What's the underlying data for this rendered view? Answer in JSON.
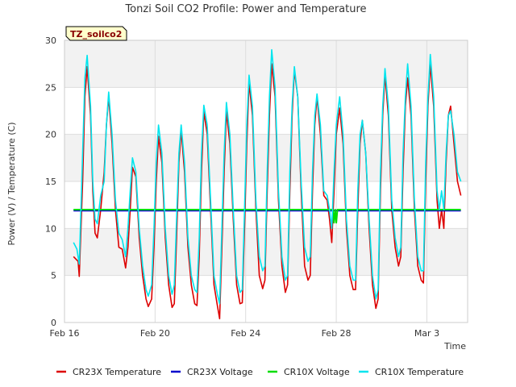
{
  "chart_data": {
    "type": "line",
    "title": "Tonzi Soil CO2 Profile: Power and Temperature",
    "site_badge": "TZ_soilco2",
    "xlabel": "Time",
    "ylabel": "Power (V) / Temperature (C)",
    "ylim": [
      0,
      30
    ],
    "yticks": [
      0,
      5,
      10,
      15,
      20,
      25,
      30
    ],
    "xlim": [
      "Feb 16",
      "Mar 5"
    ],
    "xticks": [
      "Feb 16",
      "Feb 20",
      "Feb 24",
      "Feb 28",
      "Mar 3"
    ],
    "grid": true,
    "legend_position": "bottom",
    "x_unit": "day (Feb 16 = 0)",
    "series": [
      {
        "name": "CR23X Temperature",
        "color": "#dd0000",
        "points": [
          [
            0.4,
            7.0
          ],
          [
            0.6,
            6.5
          ],
          [
            0.65,
            4.9
          ],
          [
            0.8,
            15
          ],
          [
            0.9,
            24
          ],
          [
            1.0,
            27.2
          ],
          [
            1.15,
            22
          ],
          [
            1.25,
            14
          ],
          [
            1.35,
            9.5
          ],
          [
            1.45,
            9.0
          ],
          [
            1.6,
            12
          ],
          [
            1.75,
            16
          ],
          [
            1.85,
            21
          ],
          [
            1.95,
            24.0
          ],
          [
            2.1,
            19
          ],
          [
            2.25,
            12
          ],
          [
            2.4,
            8.0
          ],
          [
            2.55,
            7.8
          ],
          [
            2.7,
            5.8
          ],
          [
            2.8,
            8
          ],
          [
            2.9,
            12
          ],
          [
            3.0,
            16.5
          ],
          [
            3.15,
            15.5
          ],
          [
            3.3,
            9
          ],
          [
            3.45,
            5
          ],
          [
            3.6,
            2.5
          ],
          [
            3.7,
            1.7
          ],
          [
            3.85,
            2.5
          ],
          [
            3.95,
            8
          ],
          [
            4.05,
            15
          ],
          [
            4.15,
            19.8
          ],
          [
            4.3,
            17
          ],
          [
            4.45,
            9
          ],
          [
            4.6,
            4
          ],
          [
            4.75,
            1.6
          ],
          [
            4.85,
            2
          ],
          [
            4.95,
            9
          ],
          [
            5.05,
            17
          ],
          [
            5.15,
            20.4
          ],
          [
            5.3,
            16
          ],
          [
            5.45,
            8
          ],
          [
            5.6,
            4
          ],
          [
            5.75,
            2
          ],
          [
            5.85,
            1.8
          ],
          [
            5.95,
            7
          ],
          [
            6.05,
            16
          ],
          [
            6.15,
            22.4
          ],
          [
            6.3,
            20
          ],
          [
            6.45,
            12
          ],
          [
            6.6,
            4
          ],
          [
            6.75,
            1.8
          ],
          [
            6.85,
            0.4
          ],
          [
            6.95,
            8
          ],
          [
            7.05,
            16
          ],
          [
            7.15,
            22.4
          ],
          [
            7.3,
            19
          ],
          [
            7.45,
            11
          ],
          [
            7.6,
            4
          ],
          [
            7.75,
            2.0
          ],
          [
            7.85,
            2.1
          ],
          [
            7.95,
            10
          ],
          [
            8.05,
            19
          ],
          [
            8.15,
            25.5
          ],
          [
            8.3,
            22
          ],
          [
            8.45,
            12
          ],
          [
            8.6,
            5
          ],
          [
            8.75,
            3.6
          ],
          [
            8.85,
            4.5
          ],
          [
            8.95,
            14
          ],
          [
            9.05,
            22
          ],
          [
            9.15,
            27.5
          ],
          [
            9.3,
            24
          ],
          [
            9.45,
            13
          ],
          [
            9.6,
            6
          ],
          [
            9.75,
            3.2
          ],
          [
            9.85,
            4
          ],
          [
            9.95,
            14
          ],
          [
            10.05,
            22
          ],
          [
            10.15,
            26.8
          ],
          [
            10.3,
            24
          ],
          [
            10.45,
            14
          ],
          [
            10.6,
            6
          ],
          [
            10.75,
            4.5
          ],
          [
            10.85,
            5
          ],
          [
            10.95,
            14
          ],
          [
            11.05,
            21
          ],
          [
            11.15,
            24.0
          ],
          [
            11.3,
            20
          ],
          [
            11.45,
            13.5
          ],
          [
            11.6,
            13
          ],
          [
            11.7,
            11
          ],
          [
            11.8,
            8.5
          ],
          [
            11.9,
            14
          ],
          [
            12.0,
            20
          ],
          [
            12.15,
            22.8
          ],
          [
            12.3,
            19
          ],
          [
            12.45,
            10
          ],
          [
            12.6,
            5
          ],
          [
            12.75,
            3.5
          ],
          [
            12.85,
            3.5
          ],
          [
            12.95,
            12
          ],
          [
            13.05,
            19
          ],
          [
            13.15,
            21.5
          ],
          [
            13.3,
            18
          ],
          [
            13.45,
            10
          ],
          [
            13.6,
            4
          ],
          [
            13.75,
            1.5
          ],
          [
            13.85,
            2.5
          ],
          [
            13.95,
            14
          ],
          [
            14.05,
            22
          ],
          [
            14.15,
            26.3
          ],
          [
            14.3,
            22
          ],
          [
            14.45,
            12
          ],
          [
            14.6,
            8
          ],
          [
            14.75,
            6
          ],
          [
            14.85,
            7
          ],
          [
            14.95,
            16
          ],
          [
            15.05,
            23
          ],
          [
            15.15,
            26.0
          ],
          [
            15.3,
            22
          ],
          [
            15.45,
            12
          ],
          [
            15.6,
            6
          ],
          [
            15.75,
            4.5
          ],
          [
            15.85,
            4.2
          ],
          [
            15.95,
            15
          ],
          [
            16.05,
            23
          ],
          [
            16.15,
            27.5
          ],
          [
            16.3,
            23
          ],
          [
            16.45,
            13
          ],
          [
            16.55,
            10
          ],
          [
            16.65,
            12
          ],
          [
            16.75,
            10
          ],
          [
            16.85,
            17
          ],
          [
            16.95,
            22
          ],
          [
            17.05,
            23.0
          ],
          [
            17.2,
            19
          ],
          [
            17.35,
            15
          ],
          [
            17.5,
            13.5
          ]
        ]
      },
      {
        "name": "CR23X Voltage",
        "color": "#0000cc",
        "points": [
          [
            0.4,
            11.9
          ],
          [
            17.5,
            11.9
          ]
        ]
      },
      {
        "name": "CR10X Voltage",
        "color": "#00dd00",
        "points": [
          [
            0.4,
            12.0
          ],
          [
            11.85,
            12.0
          ],
          [
            11.9,
            10.6
          ],
          [
            11.95,
            12.0
          ],
          [
            12.0,
            10.6
          ],
          [
            12.05,
            12.0
          ],
          [
            17.5,
            12.0
          ]
        ]
      },
      {
        "name": "CR10X Temperature",
        "color": "#00e5ee",
        "points": [
          [
            0.4,
            8.5
          ],
          [
            0.55,
            7.8
          ],
          [
            0.65,
            6.2
          ],
          [
            0.8,
            18
          ],
          [
            0.9,
            26
          ],
          [
            1.0,
            28.4
          ],
          [
            1.15,
            23
          ],
          [
            1.25,
            15
          ],
          [
            1.35,
            11
          ],
          [
            1.45,
            10.5
          ],
          [
            1.6,
            13.5
          ],
          [
            1.75,
            15
          ],
          [
            1.85,
            21
          ],
          [
            1.95,
            24.5
          ],
          [
            2.1,
            20
          ],
          [
            2.25,
            13
          ],
          [
            2.4,
            9.5
          ],
          [
            2.55,
            8.8
          ],
          [
            2.7,
            7.0
          ],
          [
            2.8,
            10
          ],
          [
            2.9,
            14
          ],
          [
            3.0,
            17.5
          ],
          [
            3.15,
            16
          ],
          [
            3.3,
            10
          ],
          [
            3.45,
            6
          ],
          [
            3.6,
            3.5
          ],
          [
            3.7,
            2.8
          ],
          [
            3.85,
            4
          ],
          [
            3.95,
            10
          ],
          [
            4.05,
            17
          ],
          [
            4.15,
            21.0
          ],
          [
            4.3,
            18
          ],
          [
            4.45,
            10
          ],
          [
            4.6,
            5
          ],
          [
            4.75,
            3.0
          ],
          [
            4.85,
            4
          ],
          [
            4.95,
            11
          ],
          [
            5.05,
            18
          ],
          [
            5.15,
            21.0
          ],
          [
            5.3,
            17
          ],
          [
            5.45,
            9
          ],
          [
            5.6,
            5
          ],
          [
            5.75,
            3.5
          ],
          [
            5.85,
            3.2
          ],
          [
            5.95,
            9
          ],
          [
            6.05,
            18
          ],
          [
            6.15,
            23.1
          ],
          [
            6.3,
            21
          ],
          [
            6.45,
            13
          ],
          [
            6.6,
            5
          ],
          [
            6.75,
            3.0
          ],
          [
            6.85,
            2.0
          ],
          [
            6.95,
            10
          ],
          [
            7.05,
            18
          ],
          [
            7.15,
            23.4
          ],
          [
            7.3,
            20
          ],
          [
            7.45,
            12
          ],
          [
            7.6,
            5
          ],
          [
            7.75,
            3.2
          ],
          [
            7.85,
            3.5
          ],
          [
            7.95,
            12
          ],
          [
            8.05,
            21
          ],
          [
            8.15,
            26.3
          ],
          [
            8.3,
            23
          ],
          [
            8.45,
            13
          ],
          [
            8.6,
            7
          ],
          [
            8.75,
            5.5
          ],
          [
            8.85,
            6
          ],
          [
            8.95,
            16
          ],
          [
            9.05,
            24
          ],
          [
            9.15,
            29.0
          ],
          [
            9.3,
            25
          ],
          [
            9.45,
            14
          ],
          [
            9.6,
            7
          ],
          [
            9.75,
            4.5
          ],
          [
            9.85,
            5
          ],
          [
            9.95,
            16
          ],
          [
            10.05,
            23
          ],
          [
            10.15,
            27.2
          ],
          [
            10.3,
            24
          ],
          [
            10.45,
            15
          ],
          [
            10.6,
            8
          ],
          [
            10.75,
            6.5
          ],
          [
            10.85,
            7
          ],
          [
            10.95,
            16
          ],
          [
            11.05,
            22
          ],
          [
            11.15,
            24.3
          ],
          [
            11.3,
            21
          ],
          [
            11.45,
            14
          ],
          [
            11.6,
            13.5
          ],
          [
            11.7,
            12
          ],
          [
            11.8,
            10
          ],
          [
            11.9,
            16
          ],
          [
            12.0,
            21
          ],
          [
            12.15,
            24.0
          ],
          [
            12.3,
            20
          ],
          [
            12.45,
            11
          ],
          [
            12.6,
            6
          ],
          [
            12.75,
            4.5
          ],
          [
            12.85,
            4.5
          ],
          [
            12.95,
            14
          ],
          [
            13.05,
            20
          ],
          [
            13.15,
            21.5
          ],
          [
            13.3,
            18
          ],
          [
            13.45,
            11
          ],
          [
            13.6,
            5
          ],
          [
            13.75,
            2.5
          ],
          [
            13.85,
            3.5
          ],
          [
            13.95,
            16
          ],
          [
            14.05,
            23
          ],
          [
            14.15,
            27.0
          ],
          [
            14.3,
            23
          ],
          [
            14.45,
            13
          ],
          [
            14.6,
            9
          ],
          [
            14.75,
            7
          ],
          [
            14.85,
            8
          ],
          [
            14.95,
            18
          ],
          [
            15.05,
            24
          ],
          [
            15.15,
            27.5
          ],
          [
            15.3,
            23
          ],
          [
            15.45,
            13
          ],
          [
            15.6,
            7
          ],
          [
            15.75,
            5.5
          ],
          [
            15.85,
            5.5
          ],
          [
            15.95,
            17
          ],
          [
            16.05,
            24
          ],
          [
            16.15,
            28.5
          ],
          [
            16.3,
            24
          ],
          [
            16.45,
            14
          ],
          [
            16.55,
            12
          ],
          [
            16.65,
            14
          ],
          [
            16.75,
            12
          ],
          [
            16.85,
            18
          ],
          [
            16.95,
            22
          ],
          [
            17.05,
            22.5
          ],
          [
            17.2,
            20
          ],
          [
            17.35,
            16
          ],
          [
            17.5,
            15.0
          ]
        ]
      }
    ]
  }
}
